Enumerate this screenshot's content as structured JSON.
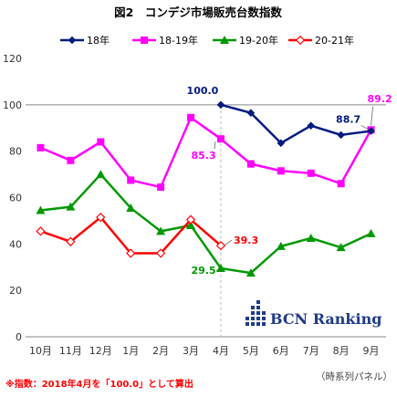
{
  "chart_data": {
    "type": "line",
    "title": "図2　コンデジ市場販売台数指数",
    "categories": [
      "10月",
      "11月",
      "12月",
      "1月",
      "2月",
      "3月",
      "4月",
      "5月",
      "6月",
      "7月",
      "8月",
      "9月"
    ],
    "ylim": [
      0,
      120
    ],
    "yticks": [
      "0",
      "20",
      "40",
      "60",
      "80",
      "100",
      "120"
    ],
    "grid": false,
    "reference_line": 100,
    "legend_position": "top",
    "series": [
      {
        "name": "18年",
        "color": "#001a80",
        "marker": "diamond",
        "values": [
          null,
          null,
          null,
          null,
          null,
          null,
          100.0,
          96.5,
          83.5,
          91,
          87,
          88.7
        ]
      },
      {
        "name": "18-19年",
        "color": "#ff00ff",
        "marker": "square",
        "values": [
          81.5,
          76,
          84,
          67.5,
          64.5,
          94.5,
          85.3,
          74.5,
          71.5,
          70.5,
          66,
          89.2
        ]
      },
      {
        "name": "19-20年",
        "color": "#009900",
        "marker": "triangle",
        "values": [
          54.5,
          56,
          70,
          55.5,
          45.5,
          48,
          29.5,
          27.5,
          39,
          42.5,
          38.5,
          44.5
        ]
      },
      {
        "name": "20-21年",
        "color": "#ff0000",
        "marker": "open-diamond",
        "values": [
          45.5,
          41,
          51.5,
          36,
          36,
          50.5,
          39.3,
          null,
          null,
          null,
          null,
          null
        ]
      }
    ],
    "annotations": [
      {
        "text": "100.0",
        "color": "#001a80"
      },
      {
        "text": "85.3",
        "color": "#ff00ff"
      },
      {
        "text": "29.5",
        "color": "#009900"
      },
      {
        "text": "39.3",
        "color": "#ff0000"
      },
      {
        "text": "88.7",
        "color": "#001a80"
      },
      {
        "text": "89.2",
        "color": "#ff00ff"
      }
    ]
  },
  "footnote": "※指数：2018年4月を「100.0」として算出",
  "panel_note": "（時系列パネル）",
  "logo_text": "BCN Ranking"
}
